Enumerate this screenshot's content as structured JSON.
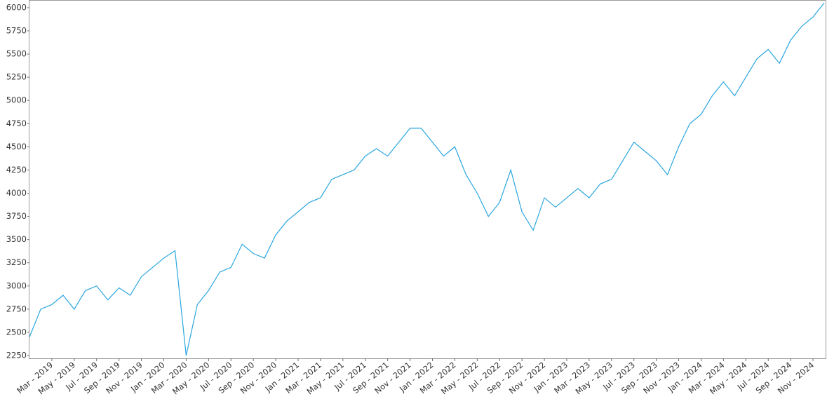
{
  "chart_data": {
    "type": "line",
    "x": [
      "2019-01",
      "2019-02",
      "2019-03",
      "2019-04",
      "2019-05",
      "2019-06",
      "2019-07",
      "2019-08",
      "2019-09",
      "2019-10",
      "2019-11",
      "2019-12",
      "2020-01",
      "2020-02",
      "2020-03",
      "2020-04",
      "2020-05",
      "2020-06",
      "2020-07",
      "2020-08",
      "2020-09",
      "2020-10",
      "2020-11",
      "2020-12",
      "2021-01",
      "2021-02",
      "2021-03",
      "2021-04",
      "2021-05",
      "2021-06",
      "2021-07",
      "2021-08",
      "2021-09",
      "2021-10",
      "2021-11",
      "2021-12",
      "2022-01",
      "2022-02",
      "2022-03",
      "2022-04",
      "2022-05",
      "2022-06",
      "2022-07",
      "2022-08",
      "2022-09",
      "2022-10",
      "2022-11",
      "2022-12",
      "2023-01",
      "2023-02",
      "2023-03",
      "2023-04",
      "2023-05",
      "2023-06",
      "2023-07",
      "2023-08",
      "2023-09",
      "2023-10",
      "2023-11",
      "2023-12",
      "2024-01",
      "2024-02",
      "2024-03",
      "2024-04",
      "2024-05",
      "2024-06",
      "2024-07",
      "2024-08",
      "2024-09",
      "2024-10",
      "2024-11",
      "2024-12"
    ],
    "series": [
      {
        "color": "#2ba6de",
        "values": [
          2450,
          2750,
          2800,
          2900,
          2750,
          2950,
          3000,
          2850,
          2980,
          2900,
          3100,
          3200,
          3300,
          3380,
          2250,
          2800,
          2950,
          3150,
          3200,
          3450,
          3350,
          3300,
          3550,
          3700,
          3800,
          3900,
          3950,
          4150,
          4200,
          4250,
          4400,
          4480,
          4400,
          4550,
          4700,
          4700,
          4550,
          4400,
          4500,
          4200,
          4000,
          3750,
          3900,
          4250,
          3800,
          3600,
          3950,
          3850,
          3950,
          4050,
          3950,
          4100,
          4150,
          4350,
          4550,
          4450,
          4350,
          4200,
          4500,
          4750,
          4850,
          5050,
          5200,
          5050,
          5250,
          5450,
          5550,
          5400,
          5650,
          5800,
          5900,
          6050
        ]
      }
    ],
    "xlim": [
      "2019-01",
      "2024-12"
    ],
    "xticks": [
      {
        "value": "2019-03",
        "label": "Mar - 2019"
      },
      {
        "value": "2019-05",
        "label": "May - 2019"
      },
      {
        "value": "2019-07",
        "label": "Jul - 2019"
      },
      {
        "value": "2019-09",
        "label": "Sep - 2019"
      },
      {
        "value": "2019-11",
        "label": "Nov - 2019"
      },
      {
        "value": "2020-01",
        "label": "Jan - 2020"
      },
      {
        "value": "2020-03",
        "label": "Mar - 2020"
      },
      {
        "value": "2020-05",
        "label": "May - 2020"
      },
      {
        "value": "2020-07",
        "label": "Jul - 2020"
      },
      {
        "value": "2020-09",
        "label": "Sep - 2020"
      },
      {
        "value": "2020-11",
        "label": "Nov - 2020"
      },
      {
        "value": "2021-01",
        "label": "Jan - 2021"
      },
      {
        "value": "2021-03",
        "label": "Mar - 2021"
      },
      {
        "value": "2021-05",
        "label": "May - 2021"
      },
      {
        "value": "2021-07",
        "label": "Jul - 2021"
      },
      {
        "value": "2021-09",
        "label": "Sep - 2021"
      },
      {
        "value": "2021-11",
        "label": "Nov - 2021"
      },
      {
        "value": "2022-01",
        "label": "Jan - 2022"
      },
      {
        "value": "2022-03",
        "label": "Mar - 2022"
      },
      {
        "value": "2022-05",
        "label": "May - 2022"
      },
      {
        "value": "2022-07",
        "label": "Jul - 2022"
      },
      {
        "value": "2022-09",
        "label": "Sep - 2022"
      },
      {
        "value": "2022-11",
        "label": "Nov - 2022"
      },
      {
        "value": "2023-01",
        "label": "Jan - 2023"
      },
      {
        "value": "2023-03",
        "label": "Mar - 2023"
      },
      {
        "value": "2023-05",
        "label": "May - 2023"
      },
      {
        "value": "2023-07",
        "label": "Jul - 2023"
      },
      {
        "value": "2023-09",
        "label": "Sep - 2023"
      },
      {
        "value": "2023-11",
        "label": "Nov - 2023"
      },
      {
        "value": "2024-01",
        "label": "Jan - 2024"
      },
      {
        "value": "2024-03",
        "label": "Mar - 2024"
      },
      {
        "value": "2024-05",
        "label": "May - 2024"
      },
      {
        "value": "2024-07",
        "label": "Jul - 2024"
      },
      {
        "value": "2024-09",
        "label": "Sep - 2024"
      },
      {
        "value": "2024-11",
        "label": "Nov - 2024"
      }
    ],
    "ylim": [
      2220,
      6075
    ],
    "yticks": [
      2250,
      2500,
      2750,
      3000,
      3250,
      3500,
      3750,
      4000,
      4250,
      4500,
      4750,
      5000,
      5250,
      5500,
      5750,
      6000
    ]
  }
}
